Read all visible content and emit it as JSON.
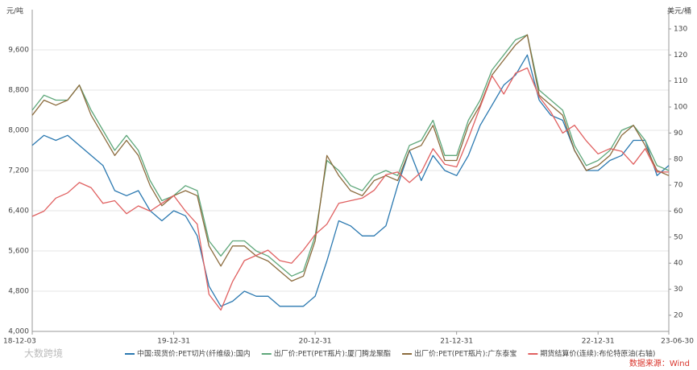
{
  "chart_data": {
    "type": "line",
    "y_label": "元/吨",
    "y2_label": "美元/桶",
    "source": "数据来源：Wind",
    "watermark": "大数跨境",
    "categories": [
      "18-12-03",
      null,
      null,
      null,
      null,
      null,
      null,
      null,
      null,
      null,
      null,
      null,
      "19-12-31",
      null,
      null,
      null,
      null,
      null,
      null,
      null,
      null,
      null,
      null,
      null,
      "20-12-31",
      null,
      null,
      null,
      null,
      null,
      null,
      null,
      null,
      null,
      null,
      null,
      "21-12-31",
      null,
      null,
      null,
      null,
      null,
      null,
      null,
      null,
      null,
      null,
      null,
      "22-12-31",
      null,
      null,
      null,
      null,
      null,
      "23-06-30"
    ],
    "ylim": [
      4000,
      10400
    ],
    "yticks": [
      {
        "value": 4000,
        "label": "4,000"
      },
      {
        "value": 4800,
        "label": "4,800"
      },
      {
        "value": 5600,
        "label": "5,600"
      },
      {
        "value": 6400,
        "label": "6,400"
      },
      {
        "value": 7200,
        "label": "7,200"
      },
      {
        "value": 8000,
        "label": "8,000"
      },
      {
        "value": 8800,
        "label": "8,800"
      },
      {
        "value": 9600,
        "label": "9,600"
      }
    ],
    "y2lim": [
      13.8,
      137.4
    ],
    "y2ticks": [
      20,
      30,
      40,
      50,
      60,
      70,
      80,
      90,
      100,
      110,
      120,
      130
    ],
    "grid": true,
    "series": [
      {
        "name": "中国:现货价:PET切片(纤维级):国内",
        "color": "#2a78b0",
        "values": [
          7700,
          7900,
          7800,
          7900,
          7700,
          7500,
          7300,
          6800,
          6700,
          6800,
          6400,
          6200,
          6400,
          6300,
          5900,
          4900,
          4500,
          4600,
          4800,
          4700,
          4700,
          4500,
          4500,
          4500,
          4700,
          5400,
          6200,
          6100,
          5900,
          5900,
          6100,
          6900,
          7600,
          7000,
          7500,
          7200,
          7100,
          7500,
          8100,
          8500,
          8900,
          9100,
          9500,
          8600,
          8300,
          8200,
          7600,
          7200,
          7200,
          7400,
          7500,
          7800,
          7800,
          7100,
          7300
        ]
      },
      {
        "name": "出厂价:PET(PET瓶片):厦门腾龙聚酯",
        "color": "#5ea77a",
        "values": [
          8400,
          8700,
          8600,
          8600,
          8900,
          8400,
          8000,
          7600,
          7900,
          7600,
          7000,
          6600,
          6700,
          6900,
          6800,
          5800,
          5500,
          5800,
          5800,
          5600,
          5500,
          5300,
          5100,
          5200,
          5900,
          7400,
          7200,
          6900,
          6800,
          7100,
          7200,
          7100,
          7700,
          7800,
          8200,
          7500,
          7500,
          8200,
          8600,
          9200,
          9500,
          9800,
          9900,
          8800,
          8600,
          8400,
          7700,
          7300,
          7400,
          7600,
          8000,
          8100,
          7800,
          7300,
          7200
        ]
      },
      {
        "name": "出厂价:PET(PET瓶片):广东泰宝",
        "color": "#8b6b3d",
        "values": [
          8300,
          8600,
          8500,
          8600,
          8900,
          8300,
          7900,
          7500,
          7800,
          7500,
          6900,
          6500,
          6700,
          6800,
          6700,
          5700,
          5300,
          5700,
          5700,
          5500,
          5400,
          5200,
          5000,
          5100,
          5800,
          7500,
          7100,
          6800,
          6700,
          7000,
          7100,
          7000,
          7600,
          7700,
          8100,
          7400,
          7400,
          8100,
          8500,
          9100,
          9400,
          9700,
          9900,
          8700,
          8500,
          8300,
          7600,
          7200,
          7300,
          7500,
          7900,
          8100,
          7700,
          7200,
          7100
        ]
      },
      {
        "name": "期货结算价(连续):布伦特原油(右轴)",
        "color": "#e06060",
        "axis": "y2",
        "values": [
          58,
          60,
          65,
          67,
          71,
          69,
          63,
          64,
          59,
          62,
          60,
          63,
          66,
          60,
          55,
          28,
          22,
          33,
          41,
          43,
          45,
          41,
          40,
          45,
          51,
          55,
          63,
          64,
          65,
          68,
          74,
          75,
          71,
          75,
          84,
          78,
          77,
          88,
          100,
          112,
          105,
          113,
          115,
          104,
          98,
          90,
          93,
          87,
          82,
          84,
          83,
          78,
          84,
          75,
          75
        ]
      }
    ]
  }
}
